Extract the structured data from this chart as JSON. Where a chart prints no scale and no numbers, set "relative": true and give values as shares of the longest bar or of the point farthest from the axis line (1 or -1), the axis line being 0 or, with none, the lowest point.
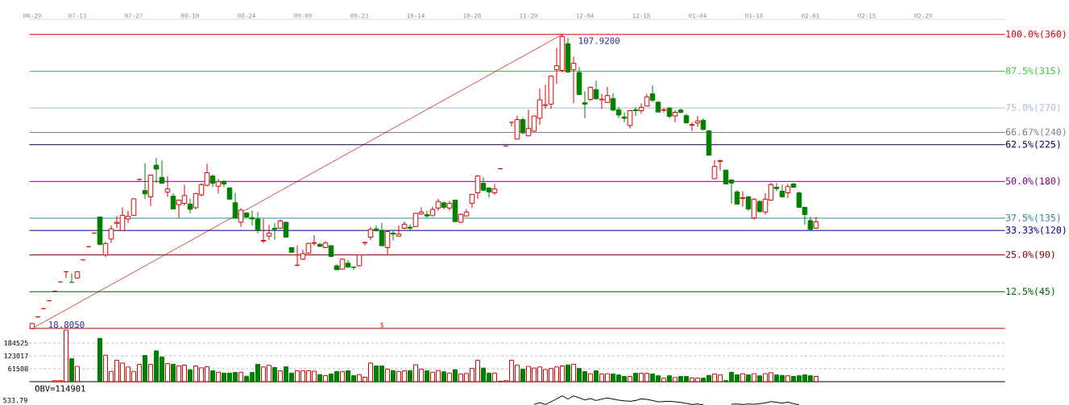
{
  "chart_data": [
    {
      "type": "candlestick",
      "categories": [
        "06-29",
        null,
        null,
        null,
        null,
        null,
        null,
        null,
        "07-13",
        null,
        null,
        null,
        null,
        null,
        null,
        null,
        null,
        null,
        "07-27",
        null,
        null,
        null,
        null,
        null,
        null,
        null,
        null,
        null,
        "08-10",
        null,
        null,
        null,
        null,
        null,
        null,
        null,
        null,
        null,
        "08-24",
        null,
        null,
        null,
        null,
        null,
        null,
        null,
        null,
        null,
        "09-09",
        null,
        null,
        null,
        null,
        null,
        null,
        null,
        null,
        null,
        "09-23",
        null,
        null,
        null,
        null,
        null,
        null,
        null,
        null,
        null,
        "10-14",
        null,
        null,
        null,
        null,
        null,
        null,
        null,
        null,
        null,
        "10-28",
        null,
        null,
        null,
        null,
        null,
        null,
        null,
        null,
        null,
        "11-20",
        null,
        null,
        null,
        null,
        null,
        null,
        null,
        null,
        null,
        "12-04",
        null,
        null,
        null,
        null,
        null,
        null,
        null,
        null,
        null,
        "12-18",
        null,
        null,
        null,
        null,
        null,
        null,
        null,
        null,
        null,
        "01-04",
        null,
        null,
        null,
        null,
        null,
        null,
        null,
        null,
        null,
        "01-18",
        null,
        null,
        null,
        null,
        null,
        null,
        null,
        null,
        null,
        "02-01",
        null,
        null,
        null,
        null,
        null,
        null,
        null,
        null,
        null,
        "02-15",
        null,
        null,
        null,
        null,
        null,
        null,
        null,
        null,
        null,
        "02-29",
        null,
        null,
        null,
        null,
        null,
        null,
        null,
        null,
        null,
        null,
        null,
        null,
        null,
        null
      ],
      "ohlc": [
        [
          18.805,
          20.3,
          18.805,
          20.3
        ],
        [
          22.3,
          22.3,
          22.3,
          22.3
        ],
        [
          24.8,
          24.8,
          24.8,
          24.8
        ],
        [
          27.2,
          27.2,
          27.2,
          27.2
        ],
        [
          30.1,
          30.1,
          30.1,
          30.1
        ],
        [
          32.9,
          32.9,
          32.9,
          32.9
        ],
        [
          36.0,
          36.0,
          34.1,
          36.0
        ],
        [
          32.8,
          35.5,
          32.8,
          32.8
        ],
        [
          34.1,
          36.0,
          34.1,
          36.0
        ],
        [
          39.6,
          39.6,
          39.6,
          39.6
        ],
        [
          43.6,
          43.6,
          43.6,
          43.6
        ],
        [
          47.7,
          47.7,
          47.7,
          47.7
        ],
        [
          52.6,
          52.6,
          43.9,
          44.3
        ],
        [
          41.1,
          45.1,
          40.4,
          44.5
        ],
        [
          45.9,
          50.0,
          44.7,
          49.0
        ],
        [
          50.6,
          52.9,
          49.2,
          51.0
        ],
        [
          48.5,
          55.5,
          48.5,
          53.1
        ],
        [
          52.0,
          54.5,
          50.8,
          52.8
        ],
        [
          53.1,
          58.3,
          53.1,
          58.1
        ],
        [
          64.0,
          64.0,
          63.6,
          64.0
        ],
        [
          60.6,
          68.9,
          58.1,
          59.6
        ],
        [
          58.7,
          65.4,
          55.9,
          65.3
        ],
        [
          68.3,
          70.5,
          63.0,
          67.1
        ],
        [
          64.6,
          69.7,
          62.8,
          62.8
        ],
        [
          60.1,
          65.0,
          58.7,
          61.1
        ],
        [
          58.9,
          59.8,
          55.0,
          55.0
        ],
        [
          56.3,
          57.7,
          52.3,
          57.7
        ],
        [
          56.7,
          62.4,
          56.1,
          59.1
        ],
        [
          56.5,
          58.1,
          53.7,
          54.9
        ],
        [
          55.4,
          59.9,
          54.9,
          59.7
        ],
        [
          59.3,
          62.8,
          58.8,
          62.4
        ],
        [
          62.2,
          68.7,
          61.9,
          66.0
        ],
        [
          65.0,
          65.5,
          61.6,
          62.8
        ],
        [
          61.9,
          64.1,
          59.7,
          63.3
        ],
        [
          63.4,
          63.6,
          61.6,
          62.6
        ],
        [
          61.4,
          61.6,
          57.7,
          58.0
        ],
        [
          56.9,
          59.9,
          52.0,
          52.3
        ],
        [
          51.0,
          55.3,
          49.6,
          54.7
        ],
        [
          53.8,
          54.1,
          52.4,
          52.6
        ],
        [
          52.4,
          54.5,
          50.0,
          52.0
        ],
        [
          52.0,
          54.1,
          47.6,
          48.5
        ],
        [
          45.3,
          52.0,
          44.7,
          45.5
        ],
        [
          46.8,
          50.2,
          45.7,
          47.7
        ],
        [
          49.2,
          50.8,
          45.7,
          48.8
        ],
        [
          49.2,
          51.8,
          49.0,
          51.4
        ],
        [
          51.0,
          51.1,
          46.3,
          46.5
        ],
        [
          43.3,
          43.3,
          41.9,
          41.9
        ],
        [
          37.9,
          43.9,
          37.9,
          38.0
        ],
        [
          39.8,
          42.7,
          39.6,
          41.5
        ],
        [
          41.6,
          44.7,
          41.5,
          44.6
        ],
        [
          44.6,
          47.1,
          43.9,
          44.8
        ],
        [
          44.3,
          44.7,
          43.5,
          43.7
        ],
        [
          43.3,
          45.3,
          43.3,
          44.7
        ],
        [
          43.9,
          44.1,
          40.5,
          40.6
        ],
        [
          37.8,
          38.2,
          36.6,
          36.6
        ],
        [
          36.8,
          40.1,
          36.8,
          39.8
        ],
        [
          38.6,
          39.6,
          37.2,
          37.4
        ],
        [
          37.4,
          37.4,
          36.6,
          37.3
        ],
        [
          37.8,
          41.2,
          37.6,
          41.1
        ],
        [
          44.7,
          45.0,
          43.9,
          44.9
        ],
        [
          46.5,
          49.6,
          45.5,
          48.8
        ],
        [
          49.0,
          50.0,
          48.0,
          48.6
        ],
        [
          48.5,
          50.8,
          43.9,
          43.9
        ],
        [
          43.3,
          48.4,
          41.2,
          48.2
        ],
        [
          47.7,
          48.5,
          45.5,
          47.4
        ],
        [
          46.8,
          50.0,
          46.6,
          47.4
        ],
        [
          49.2,
          51.2,
          48.8,
          50.4
        ],
        [
          49.5,
          50.4,
          48.4,
          49.2
        ],
        [
          49.7,
          53.8,
          49.6,
          53.7
        ],
        [
          53.5,
          55.5,
          53.3,
          54.1
        ],
        [
          53.3,
          54.5,
          52.3,
          52.9
        ],
        [
          53.0,
          55.7,
          53.0,
          54.9
        ],
        [
          55.3,
          58.1,
          54.5,
          57.3
        ],
        [
          56.9,
          57.2,
          54.9,
          55.5
        ],
        [
          55.3,
          57.5,
          54.5,
          56.7
        ],
        [
          57.7,
          57.7,
          51.2,
          51.2
        ],
        [
          51.0,
          53.6,
          50.8,
          53.4
        ],
        [
          52.9,
          55.0,
          52.8,
          54.1
        ],
        [
          56.7,
          59.6,
          55.3,
          59.4
        ],
        [
          59.9,
          65.3,
          58.1,
          65.0
        ],
        [
          62.8,
          64.6,
          60.6,
          60.7
        ],
        [
          61.4,
          61.4,
          58.5,
          60.2
        ],
        [
          59.9,
          62.6,
          59.3,
          61.1
        ],
        [
          67.2,
          67.2,
          67.2,
          67.2
        ],
        [
          74.1,
          74.1,
          74.1,
          74.1
        ],
        [
          81.3,
          81.3,
          80.1,
          81.3
        ],
        [
          76.2,
          83.3,
          76.2,
          82.1
        ],
        [
          82.1,
          82.7,
          77.6,
          78.1
        ],
        [
          77.2,
          85.1,
          77.2,
          79.4
        ],
        [
          78.6,
          83.3,
          78.5,
          83.2
        ],
        [
          82.5,
          91.5,
          80.5,
          88.1
        ],
        [
          86.4,
          92.7,
          85.4,
          86.6
        ],
        [
          86.8,
          95.5,
          85.4,
          95.3
        ],
        [
          97.2,
          103.8,
          92.9,
          98.4
        ],
        [
          97.0,
          107.92,
          96.4,
          107.3
        ],
        [
          105.1,
          106.9,
          96.4,
          96.5
        ],
        [
          97.2,
          101.2,
          87.0,
          99.2
        ],
        [
          96.4,
          98.0,
          89.7,
          89.7
        ],
        [
          87.2,
          90.7,
          82.5,
          86.8
        ],
        [
          88.2,
          92.1,
          87.8,
          91.9
        ],
        [
          91.2,
          93.9,
          88.2,
          88.4
        ],
        [
          88.1,
          89.9,
          85.4,
          88.3
        ],
        [
          87.3,
          92.1,
          87.2,
          89.4
        ],
        [
          88.5,
          90.1,
          84.6,
          85.0
        ],
        [
          85.1,
          85.9,
          82.5,
          83.5
        ],
        [
          82.9,
          84.3,
          81.3,
          82.5
        ],
        [
          80.3,
          85.0,
          79.4,
          84.8
        ],
        [
          85.1,
          85.9,
          83.2,
          84.8
        ],
        [
          84.8,
          87.0,
          83.8,
          85.8
        ],
        [
          86.2,
          89.9,
          86.2,
          89.0
        ],
        [
          89.9,
          92.5,
          87.4,
          88.0
        ],
        [
          87.4,
          87.6,
          84.3,
          84.4
        ],
        [
          84.9,
          85.6,
          84.2,
          85.1
        ],
        [
          85.6,
          85.9,
          82.5,
          83.1
        ],
        [
          83.2,
          85.0,
          81.3,
          84.3
        ],
        [
          85.0,
          85.4,
          84.0,
          84.3
        ],
        [
          83.3,
          83.8,
          80.9,
          81.1
        ],
        [
          80.4,
          81.3,
          78.6,
          80.6
        ],
        [
          81.1,
          83.2,
          79.9,
          81.7
        ],
        [
          81.9,
          82.5,
          79.0,
          79.1
        ],
        [
          78.7,
          78.9,
          71.3,
          71.3
        ],
        [
          64.2,
          69.9,
          64.2,
          67.9
        ],
        [
          69.4,
          69.9,
          66.7,
          69.7
        ],
        [
          66.8,
          66.9,
          62.5,
          62.6
        ],
        [
          63.8,
          64.0,
          56.7,
          62.9
        ],
        [
          60.2,
          60.7,
          56.5,
          56.5
        ],
        [
          58.2,
          60.4,
          55.7,
          58.4
        ],
        [
          58.7,
          59.0,
          54.5,
          55.0
        ],
        [
          52.3,
          58.3,
          51.8,
          58.0
        ],
        [
          57.3,
          57.7,
          53.9,
          54.2
        ],
        [
          54.1,
          59.8,
          53.3,
          58.0
        ],
        [
          57.7,
          63.0,
          57.6,
          62.4
        ],
        [
          61.6,
          62.9,
          60.4,
          61.2
        ],
        [
          60.4,
          62.4,
          58.5,
          58.7
        ],
        [
          59.9,
          62.6,
          58.3,
          61.8
        ],
        [
          62.6,
          62.9,
          61.4,
          61.6
        ],
        [
          59.9,
          60.4,
          55.3,
          55.5
        ],
        [
          55.5,
          55.7,
          50.2,
          53.3
        ],
        [
          51.5,
          52.6,
          48.4,
          48.8
        ],
        [
          49.2,
          52.6,
          49.2,
          51.1
        ],
        null,
        null,
        null,
        null,
        null,
        null,
        null,
        null,
        null,
        null,
        null,
        null,
        null,
        null,
        null,
        null,
        null,
        null,
        null,
        null,
        null,
        null,
        null,
        null,
        null,
        null,
        null,
        null,
        null,
        null,
        null,
        null,
        null
      ],
      "colors": [
        "#dd0000",
        "#dd0000",
        "#dd0000",
        "#dd0000",
        "#dd0000",
        "#dd0000",
        "#dd0000",
        "#008000",
        "#dd0000",
        "#dd0000",
        "#dd0000",
        "#dd0000",
        "#008000",
        "#dd0000",
        "#dd0000",
        "#dd0000",
        "#dd0000",
        "#dd0000",
        "#dd0000",
        "#dd0000",
        "#008000",
        "#dd0000",
        "#008000",
        "#008000",
        "#dd0000",
        "#008000",
        "#dd0000",
        "#dd0000",
        "#008000",
        "#dd0000",
        "#dd0000",
        "#dd0000",
        "#008000",
        "#dd0000",
        "#008000",
        "#008000",
        "#008000",
        "#dd0000",
        "#008000",
        "#008000",
        "#008000",
        "#dd0000",
        "#dd0000",
        "#008000",
        "#dd0000",
        "#008000",
        "#008000",
        "#dd0000",
        "#dd0000",
        "#dd0000",
        "#dd0000",
        "#008000",
        "#dd0000",
        "#008000",
        "#008000",
        "#dd0000",
        "#008000",
        "#008000",
        "#dd0000",
        "#dd0000",
        "#dd0000",
        "#008000",
        "#008000",
        "#dd0000",
        "#008000",
        "#dd0000",
        "#dd0000",
        "#008000",
        "#dd0000",
        "#dd0000",
        "#008000",
        "#dd0000",
        "#dd0000",
        "#008000",
        "#dd0000",
        "#008000",
        "#dd0000",
        "#dd0000",
        "#dd0000",
        "#dd0000",
        "#008000",
        "#008000",
        "#dd0000",
        "#dd0000",
        "#dd0000",
        "#dd0000",
        "#dd0000",
        "#008000",
        "#dd0000",
        "#dd0000",
        "#dd0000",
        "#dd0000",
        "#dd0000",
        "#dd0000",
        "#dd0000",
        "#008000",
        "#dd0000",
        "#008000",
        "#008000",
        "#dd0000",
        "#008000",
        "#dd0000",
        "#dd0000",
        "#008000",
        "#008000",
        "#008000",
        "#dd0000",
        "#008000",
        "#dd0000",
        "#dd0000",
        "#008000",
        "#008000",
        "#dd0000",
        "#008000",
        "#dd0000",
        "#008000",
        "#008000",
        "#dd0000",
        "#dd0000",
        "#008000",
        "#008000",
        "#dd0000",
        "#dd0000",
        "#008000",
        "#008000",
        "#008000",
        "#dd0000",
        "#008000",
        "#dd0000",
        "#008000",
        "#dd0000",
        "#dd0000",
        "#008000",
        "#008000",
        "#dd0000",
        "#008000",
        "#008000",
        "#008000",
        "#008000",
        "#dd0000",
        null,
        null,
        null,
        null,
        null,
        null,
        null,
        null,
        null,
        null,
        null,
        null,
        null,
        null,
        null,
        null,
        null,
        null,
        null,
        null,
        null,
        null,
        null,
        null,
        null,
        null,
        null,
        null,
        null,
        null,
        null,
        null,
        null
      ],
      "ylim": [
        18.3,
        112.5
      ],
      "y2lim": [
        -0.57,
        105.14
      ],
      "tick_labels": "x",
      "series": [
        {
          "type": "line",
          "color": "#b00000",
          "values": [
            18.805,
            null,
            null,
            null,
            null,
            null,
            null,
            null,
            null,
            null,
            null,
            null,
            null,
            null,
            null,
            null,
            null,
            null,
            null,
            null,
            null,
            null,
            null,
            null,
            null,
            null,
            null,
            null,
            null,
            null,
            null,
            null,
            null,
            null,
            null,
            null,
            null,
            null,
            null,
            null,
            null,
            null,
            null,
            null,
            null,
            null,
            null,
            null,
            null,
            null,
            null,
            null,
            null,
            null,
            null,
            null,
            null,
            null,
            null,
            null,
            null,
            null,
            null,
            null,
            null,
            null,
            null,
            null,
            null,
            null,
            null,
            null,
            null,
            null,
            null,
            null,
            null,
            null,
            null,
            null,
            null,
            null,
            null,
            null,
            null,
            null,
            null,
            null,
            null,
            null,
            null,
            null,
            null,
            null,
            107.92,
            null,
            null,
            null,
            null,
            null,
            null,
            null,
            null,
            null,
            null,
            null,
            null,
            null,
            null,
            null,
            null,
            null,
            null,
            null,
            null,
            null,
            null,
            null,
            null,
            null,
            null,
            null,
            null,
            null,
            null,
            null,
            null,
            null,
            null,
            null,
            null,
            null,
            null,
            null,
            null,
            null,
            null,
            null,
            null,
            null,
            null,
            null,
            null,
            null,
            null,
            null,
            null,
            null,
            null,
            null,
            null,
            null,
            null,
            null,
            null,
            null,
            null,
            null,
            null,
            null,
            null,
            null,
            null,
            null,
            null,
            null,
            null,
            null,
            null,
            null,
            null,
            null,
            null
          ]
        }
      ],
      "ref_lines": [
        {
          "axis": "y2",
          "value": 100.0,
          "label": "100.0%(360)",
          "color": "#e00000"
        },
        {
          "axis": "y2",
          "value": 87.5,
          "label": "87.5%(315)",
          "color": "#33cc33"
        },
        {
          "axis": "y2",
          "value": 75.0,
          "label": "75.0%(270)",
          "color": "#a8bcd4"
        },
        {
          "axis": "y2",
          "value": 66.67,
          "label": "66.67%(240)",
          "color": "#808080"
        },
        {
          "axis": "y2",
          "value": 62.5,
          "label": "62.5%(225)",
          "color": "#000060"
        },
        {
          "axis": "y2",
          "value": 50.0,
          "label": "50.0%(180)",
          "color": "#800080"
        },
        {
          "axis": "y2",
          "value": 37.5,
          "label": "37.5%(135)",
          "color": "#2a8a8a"
        },
        {
          "axis": "y2",
          "value": 33.33,
          "label": "33.33%(120)",
          "color": "#000090"
        },
        {
          "axis": "y2",
          "value": 25.0,
          "label": "25.0%(90)",
          "color": "#800000"
        },
        {
          "axis": "y2",
          "value": 12.5,
          "label": "12.5%(45)",
          "color": "#006400"
        },
        {
          "axis": "y2",
          "value": 0,
          "color": "#c00000"
        }
      ],
      "annotations": [
        {
          "text": "107.9200",
          "y": 107.92
        },
        {
          "text": "18.8050",
          "y": 18.805
        },
        "$"
      ]
    },
    {
      "type": "bar",
      "categories": [
        null,
        null,
        null,
        null,
        null,
        null,
        null,
        null,
        null,
        null,
        null,
        null,
        null,
        null,
        null,
        null,
        null,
        null,
        null,
        null,
        null,
        null,
        null,
        null,
        null,
        null,
        null,
        null,
        null,
        null,
        null,
        null,
        null,
        null,
        null,
        null,
        null,
        null,
        null,
        null,
        null,
        null,
        null,
        null,
        null,
        null,
        null,
        null,
        null,
        null,
        null,
        null,
        null,
        null,
        null,
        null,
        null,
        null,
        null,
        null,
        null,
        null,
        null,
        null,
        null,
        null,
        null,
        null,
        null,
        null,
        null,
        null,
        null,
        null,
        null,
        null,
        null,
        null,
        null,
        null,
        null,
        null,
        null,
        null,
        null,
        null,
        null,
        null,
        null,
        null,
        null,
        null,
        null,
        null,
        null,
        null,
        null,
        null,
        null,
        null,
        null,
        null,
        null,
        null,
        null,
        null,
        null,
        null,
        null,
        null,
        null,
        null,
        null,
        null,
        null,
        null,
        null,
        null,
        null,
        null,
        null,
        null,
        null,
        null,
        null,
        null,
        null,
        null,
        null,
        null,
        null,
        null,
        null,
        null,
        null,
        null,
        null,
        null,
        null,
        null,
        null,
        null,
        null,
        null,
        null,
        null,
        null,
        null,
        null,
        null,
        null,
        null,
        null,
        null,
        null,
        null,
        null,
        null,
        null,
        null,
        null,
        null,
        null,
        null,
        null,
        null,
        null,
        null,
        null,
        null,
        null,
        null,
        null
      ],
      "values": [
        null,
        null,
        null,
        null,
        5000,
        5000,
        246000,
        110000,
        73000,
        null,
        null,
        null,
        207000,
        126000,
        49000,
        102000,
        89000,
        70000,
        49000,
        83000,
        125000,
        83000,
        147000,
        118000,
        86000,
        83000,
        76000,
        79000,
        57000,
        75000,
        66000,
        71000,
        52000,
        45000,
        41000,
        41000,
        44000,
        45000,
        26000,
        44000,
        83000,
        70000,
        78000,
        68000,
        52000,
        71000,
        41000,
        52000,
        52000,
        52000,
        50000,
        34000,
        29000,
        37000,
        49000,
        49000,
        52000,
        29000,
        34000,
        21000,
        89000,
        75000,
        75000,
        60000,
        53000,
        49000,
        52000,
        53000,
        81000,
        60000,
        52000,
        45000,
        53000,
        47000,
        41000,
        57000,
        37000,
        39000,
        63000,
        102000,
        65000,
        41000,
        41000,
        2000,
        5000,
        102000,
        79000,
        60000,
        73000,
        65000,
        70000,
        58000,
        63000,
        70000,
        75000,
        80000,
        83000,
        63000,
        48000,
        38000,
        52000,
        37000,
        38000,
        37000,
        32000,
        25000,
        25000,
        40000,
        40000,
        40000,
        37000,
        28000,
        17000,
        28000,
        20000,
        25000,
        25000,
        18000,
        17000,
        17000,
        30000,
        37000,
        32000,
        5000,
        45000,
        33000,
        38000,
        32000,
        38000,
        28000,
        38000,
        43000,
        32000,
        30000,
        28000,
        25000,
        28000,
        33000,
        28000,
        25000,
        null,
        null,
        null,
        null,
        null,
        null,
        null,
        null,
        null,
        null,
        null,
        null,
        null,
        null,
        null,
        null,
        null,
        null,
        null,
        null,
        null,
        null,
        null,
        null,
        null,
        null,
        null,
        null,
        null,
        null,
        null,
        null,
        null
      ],
      "colors": [
        "#dd0000",
        "#dd0000",
        "#dd0000",
        "#dd0000",
        "#dd0000",
        "#dd0000",
        "#dd0000",
        "#008000",
        "#dd0000",
        "#dd0000",
        "#dd0000",
        "#dd0000",
        "#008000",
        "#dd0000",
        "#dd0000",
        "#dd0000",
        "#dd0000",
        "#dd0000",
        "#dd0000",
        "#dd0000",
        "#008000",
        "#dd0000",
        "#008000",
        "#008000",
        "#dd0000",
        "#008000",
        "#dd0000",
        "#dd0000",
        "#008000",
        "#dd0000",
        "#dd0000",
        "#dd0000",
        "#008000",
        "#dd0000",
        "#008000",
        "#008000",
        "#008000",
        "#dd0000",
        "#008000",
        "#008000",
        "#008000",
        "#dd0000",
        "#dd0000",
        "#008000",
        "#dd0000",
        "#008000",
        "#008000",
        "#dd0000",
        "#dd0000",
        "#dd0000",
        "#dd0000",
        "#008000",
        "#dd0000",
        "#008000",
        "#008000",
        "#dd0000",
        "#008000",
        "#008000",
        "#dd0000",
        "#dd0000",
        "#dd0000",
        "#008000",
        "#008000",
        "#dd0000",
        "#008000",
        "#dd0000",
        "#dd0000",
        "#008000",
        "#dd0000",
        "#dd0000",
        "#008000",
        "#dd0000",
        "#dd0000",
        "#008000",
        "#dd0000",
        "#008000",
        "#dd0000",
        "#dd0000",
        "#dd0000",
        "#dd0000",
        "#008000",
        "#008000",
        "#dd0000",
        "#dd0000",
        "#dd0000",
        "#dd0000",
        "#dd0000",
        "#008000",
        "#dd0000",
        "#dd0000",
        "#dd0000",
        "#dd0000",
        "#dd0000",
        "#dd0000",
        "#dd0000",
        "#008000",
        "#dd0000",
        "#008000",
        "#008000",
        "#dd0000",
        "#008000",
        "#dd0000",
        "#dd0000",
        "#008000",
        "#008000",
        "#008000",
        "#dd0000",
        "#008000",
        "#dd0000",
        "#dd0000",
        "#008000",
        "#008000",
        "#dd0000",
        "#008000",
        "#dd0000",
        "#008000",
        "#008000",
        "#dd0000",
        "#dd0000",
        "#008000",
        "#008000",
        "#dd0000",
        "#dd0000",
        "#008000",
        "#008000",
        "#008000",
        "#dd0000",
        "#008000",
        "#dd0000",
        "#008000",
        "#dd0000",
        "#dd0000",
        "#008000",
        "#008000",
        "#dd0000",
        "#008000",
        "#008000",
        "#008000",
        "#008000",
        "#dd0000",
        null,
        null,
        null,
        null,
        null,
        null,
        null,
        null,
        null,
        null,
        null,
        null,
        null,
        null,
        null,
        null,
        null,
        null,
        null,
        null,
        null,
        null,
        null,
        null,
        null,
        null,
        null,
        null,
        null,
        null,
        null,
        null,
        null
      ],
      "ylim": [
        0,
        246000
      ],
      "yticks": [
        61508,
        123017,
        184525
      ],
      "grid": "y",
      "tick_labels": "y"
    },
    {
      "type": "line",
      "title": "OBV=114901",
      "relative": true,
      "tick_labels": false,
      "categories": [
        null,
        null,
        null,
        null,
        null,
        null,
        null,
        null,
        null,
        null,
        null,
        null,
        null,
        null,
        null,
        null,
        null,
        null,
        null,
        null,
        null,
        null,
        null,
        null,
        null,
        null,
        null,
        null,
        null,
        null,
        null,
        null,
        null,
        null,
        null,
        null,
        null,
        null,
        null,
        null,
        null,
        null,
        null,
        null,
        null,
        null,
        null,
        null,
        null,
        null,
        null,
        null,
        null,
        null,
        null,
        null,
        null,
        null,
        null,
        null,
        null,
        null,
        null,
        null,
        null,
        null,
        null,
        null,
        null,
        null,
        null,
        null,
        null,
        null,
        null,
        null,
        null,
        null,
        null,
        null,
        null,
        null,
        null,
        null,
        null,
        null,
        null,
        null,
        null,
        null,
        null,
        null,
        null,
        null,
        null,
        null,
        null,
        null,
        null,
        null,
        null,
        null,
        null,
        null,
        null,
        null,
        null,
        null,
        null,
        null,
        null,
        null,
        null,
        null,
        null,
        null,
        null,
        null,
        null,
        null,
        null,
        null,
        null,
        null,
        null,
        null,
        null,
        null,
        null,
        null,
        null,
        null,
        null,
        null,
        null,
        null,
        null,
        null,
        null,
        null,
        null,
        null,
        null,
        null,
        null,
        null,
        null,
        null,
        null,
        null,
        null,
        null,
        null,
        null,
        null,
        null,
        null,
        null,
        null,
        null,
        null,
        null,
        null,
        null,
        null,
        null,
        null,
        null,
        null,
        null,
        null,
        null,
        null
      ],
      "series": [
        {
          "color": "#000000",
          "values": [
            null,
            null,
            null,
            null,
            null,
            null,
            null,
            null,
            null,
            null,
            null,
            null,
            null,
            null,
            null,
            null,
            null,
            null,
            null,
            null,
            null,
            null,
            null,
            null,
            null,
            null,
            null,
            null,
            null,
            null,
            null,
            null,
            null,
            null,
            null,
            null,
            null,
            null,
            null,
            null,
            null,
            null,
            null,
            null,
            null,
            null,
            null,
            null,
            null,
            null,
            null,
            null,
            null,
            null,
            null,
            null,
            null,
            null,
            null,
            null,
            null,
            null,
            null,
            null,
            null,
            null,
            null,
            null,
            null,
            null,
            null,
            null,
            null,
            null,
            null,
            null,
            null,
            null,
            null,
            null,
            null,
            null,
            null,
            null,
            null,
            null,
            null,
            null,
            null,
            0.03,
            0.24,
            0.03,
            0.34,
            0.67,
            1,
            0.64,
            1,
            0.79,
            0.55,
            0.7,
            0.48,
            0.64,
            0.76,
            0.64,
            0.52,
            0.45,
            0.39,
            0.48,
            0.67,
            0.61,
            0.48,
            0.33,
            0.36,
            0.39,
            0.33,
            0.27,
            0.15,
            0.03,
            0.09,
            0,
            null,
            null,
            null,
            null,
            0.06,
            0.09,
            0.03,
            0.09,
            0.06,
            0.12,
            0.21,
            0.36,
            0.27,
            0.18,
            0.3,
            0.12,
            0,
            null,
            null,
            null,
            null,
            null,
            null,
            null,
            null,
            null,
            null,
            null,
            null,
            null,
            null,
            null,
            null,
            null,
            null,
            null,
            null,
            null,
            null,
            null,
            null,
            null,
            null,
            null,
            null,
            null,
            null,
            null,
            null,
            null,
            null,
            null,
            null
          ]
        }
      ],
      "annotations": [
        "533.79"
      ]
    }
  ]
}
